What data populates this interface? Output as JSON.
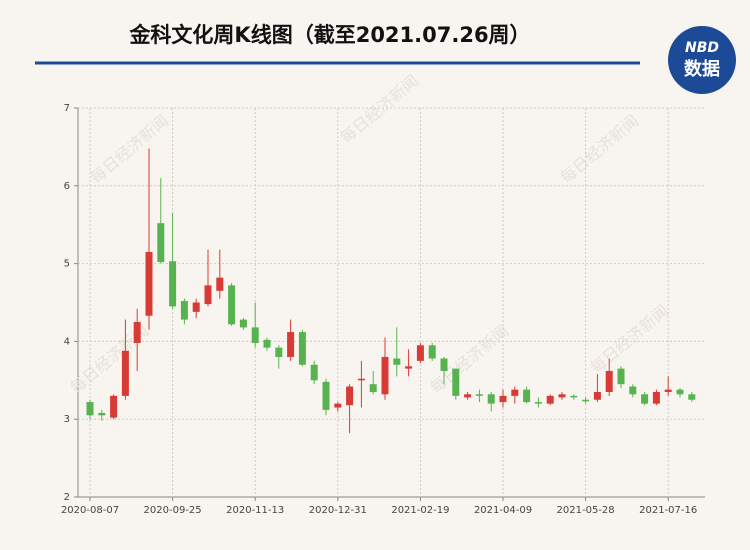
{
  "chart_data": {
    "type": "candlestick",
    "title": "金科文化周K线图（截至2021.07.26周）",
    "logo": [
      "NBD",
      "数据"
    ],
    "watermark": "每日经济新闻",
    "categories": [
      "2020-08-07",
      null,
      null,
      null,
      null,
      null,
      null,
      "2020-09-25",
      null,
      null,
      null,
      null,
      null,
      null,
      "2020-11-13",
      null,
      null,
      null,
      null,
      null,
      null,
      "2020-12-31",
      null,
      null,
      null,
      null,
      null,
      null,
      "2021-02-19",
      null,
      null,
      null,
      null,
      null,
      null,
      "2021-04-09",
      null,
      null,
      null,
      null,
      null,
      null,
      "2021-05-28",
      null,
      null,
      null,
      null,
      null,
      null,
      "2021-07-16",
      null,
      null
    ],
    "open": [
      3.22,
      3.08,
      3.02,
      3.3,
      3.98,
      4.33,
      5.52,
      5.03,
      4.52,
      4.38,
      4.48,
      4.65,
      4.72,
      4.28,
      4.18,
      4.02,
      3.92,
      3.8,
      4.12,
      3.7,
      3.48,
      3.15,
      3.18,
      3.5,
      3.45,
      3.32,
      3.78,
      3.65,
      3.75,
      3.95,
      3.78,
      3.65,
      3.28,
      3.32,
      3.32,
      3.22,
      3.3,
      3.38,
      3.22,
      3.2,
      3.28,
      3.3,
      3.25,
      3.25,
      3.35,
      3.65,
      3.42,
      3.32,
      3.2,
      3.35,
      3.38,
      3.32
    ],
    "high": [
      3.25,
      3.12,
      3.32,
      4.28,
      4.42,
      6.48,
      6.1,
      5.65,
      4.55,
      4.55,
      5.18,
      5.18,
      4.75,
      4.3,
      4.5,
      4.05,
      3.95,
      4.28,
      4.15,
      3.75,
      3.52,
      3.22,
      3.45,
      3.75,
      3.62,
      4.05,
      4.18,
      3.9,
      3.98,
      3.98,
      3.8,
      3.65,
      3.35,
      3.38,
      3.35,
      3.38,
      3.42,
      3.42,
      3.28,
      3.32,
      3.35,
      3.32,
      3.28,
      3.58,
      3.78,
      3.68,
      3.45,
      3.35,
      3.38,
      3.55,
      3.4,
      3.35
    ],
    "low": [
      3.0,
      2.98,
      3.0,
      3.25,
      3.62,
      4.15,
      5.0,
      4.42,
      4.22,
      4.3,
      4.45,
      4.55,
      4.2,
      4.15,
      3.92,
      3.88,
      3.65,
      3.75,
      3.68,
      3.45,
      3.05,
      3.1,
      2.82,
      3.15,
      3.32,
      3.25,
      3.55,
      3.55,
      3.72,
      3.75,
      3.45,
      3.25,
      3.25,
      3.22,
      3.1,
      3.15,
      3.2,
      3.2,
      3.15,
      3.18,
      3.25,
      3.25,
      3.2,
      3.22,
      3.3,
      3.4,
      3.28,
      3.18,
      3.18,
      3.3,
      3.28,
      3.22
    ],
    "close": [
      3.05,
      3.05,
      3.3,
      3.88,
      4.25,
      5.15,
      5.02,
      4.45,
      4.28,
      4.5,
      4.72,
      4.82,
      4.22,
      4.18,
      3.98,
      3.92,
      3.8,
      4.12,
      3.7,
      3.5,
      3.12,
      3.2,
      3.42,
      3.52,
      3.35,
      3.8,
      3.7,
      3.68,
      3.95,
      3.78,
      3.62,
      3.3,
      3.32,
      3.3,
      3.2,
      3.3,
      3.38,
      3.22,
      3.2,
      3.3,
      3.32,
      3.28,
      3.23,
      3.35,
      3.62,
      3.45,
      3.32,
      3.2,
      3.35,
      3.38,
      3.32,
      3.25
    ],
    "up_color": "#d83b35",
    "down_color": "#57b34f",
    "ylim": [
      2,
      7
    ],
    "yticks": [
      2,
      3,
      4,
      5,
      6,
      7
    ],
    "grid": true
  }
}
